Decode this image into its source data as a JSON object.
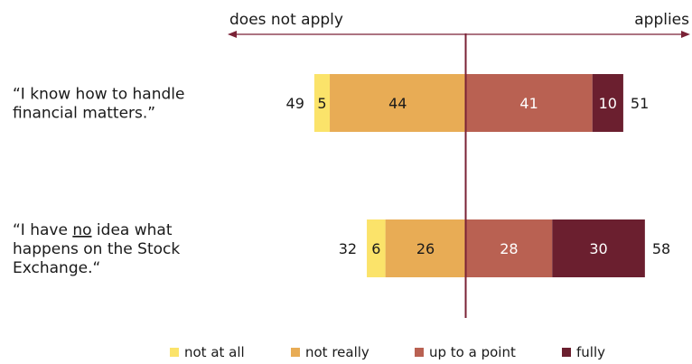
{
  "chart_data": {
    "type": "bar",
    "orientation": "horizontal",
    "stacking": "diverging",
    "header_left": "does not apply",
    "header_right": "applies",
    "categories": [
      [
        "“I know how to handle",
        "financial matters.”"
      ],
      [
        "“I have no idea what",
        "happens on the Stock",
        "Exchange.“"
      ]
    ],
    "underlined_word": "no",
    "series": [
      {
        "name": "not at all",
        "side": "negative",
        "values": [
          5,
          6
        ],
        "color": "#fbe36a",
        "label_color": "#1a1a1a"
      },
      {
        "name": "not really",
        "side": "negative",
        "values": [
          44,
          26
        ],
        "color": "#e8ac55",
        "label_color": "#1a1a1a"
      },
      {
        "name": "up to a point",
        "side": "positive",
        "values": [
          41,
          28
        ],
        "color": "#b96152",
        "label_color": "#ffffff"
      },
      {
        "name": "fully",
        "side": "positive",
        "values": [
          10,
          30
        ],
        "color": "#6b1f2f",
        "label_color": "#ffffff"
      }
    ],
    "totals_negative": [
      49,
      32
    ],
    "totals_positive": [
      51,
      58
    ],
    "axis_color": "#7a2236",
    "legend": {
      "position": "bottom"
    }
  }
}
